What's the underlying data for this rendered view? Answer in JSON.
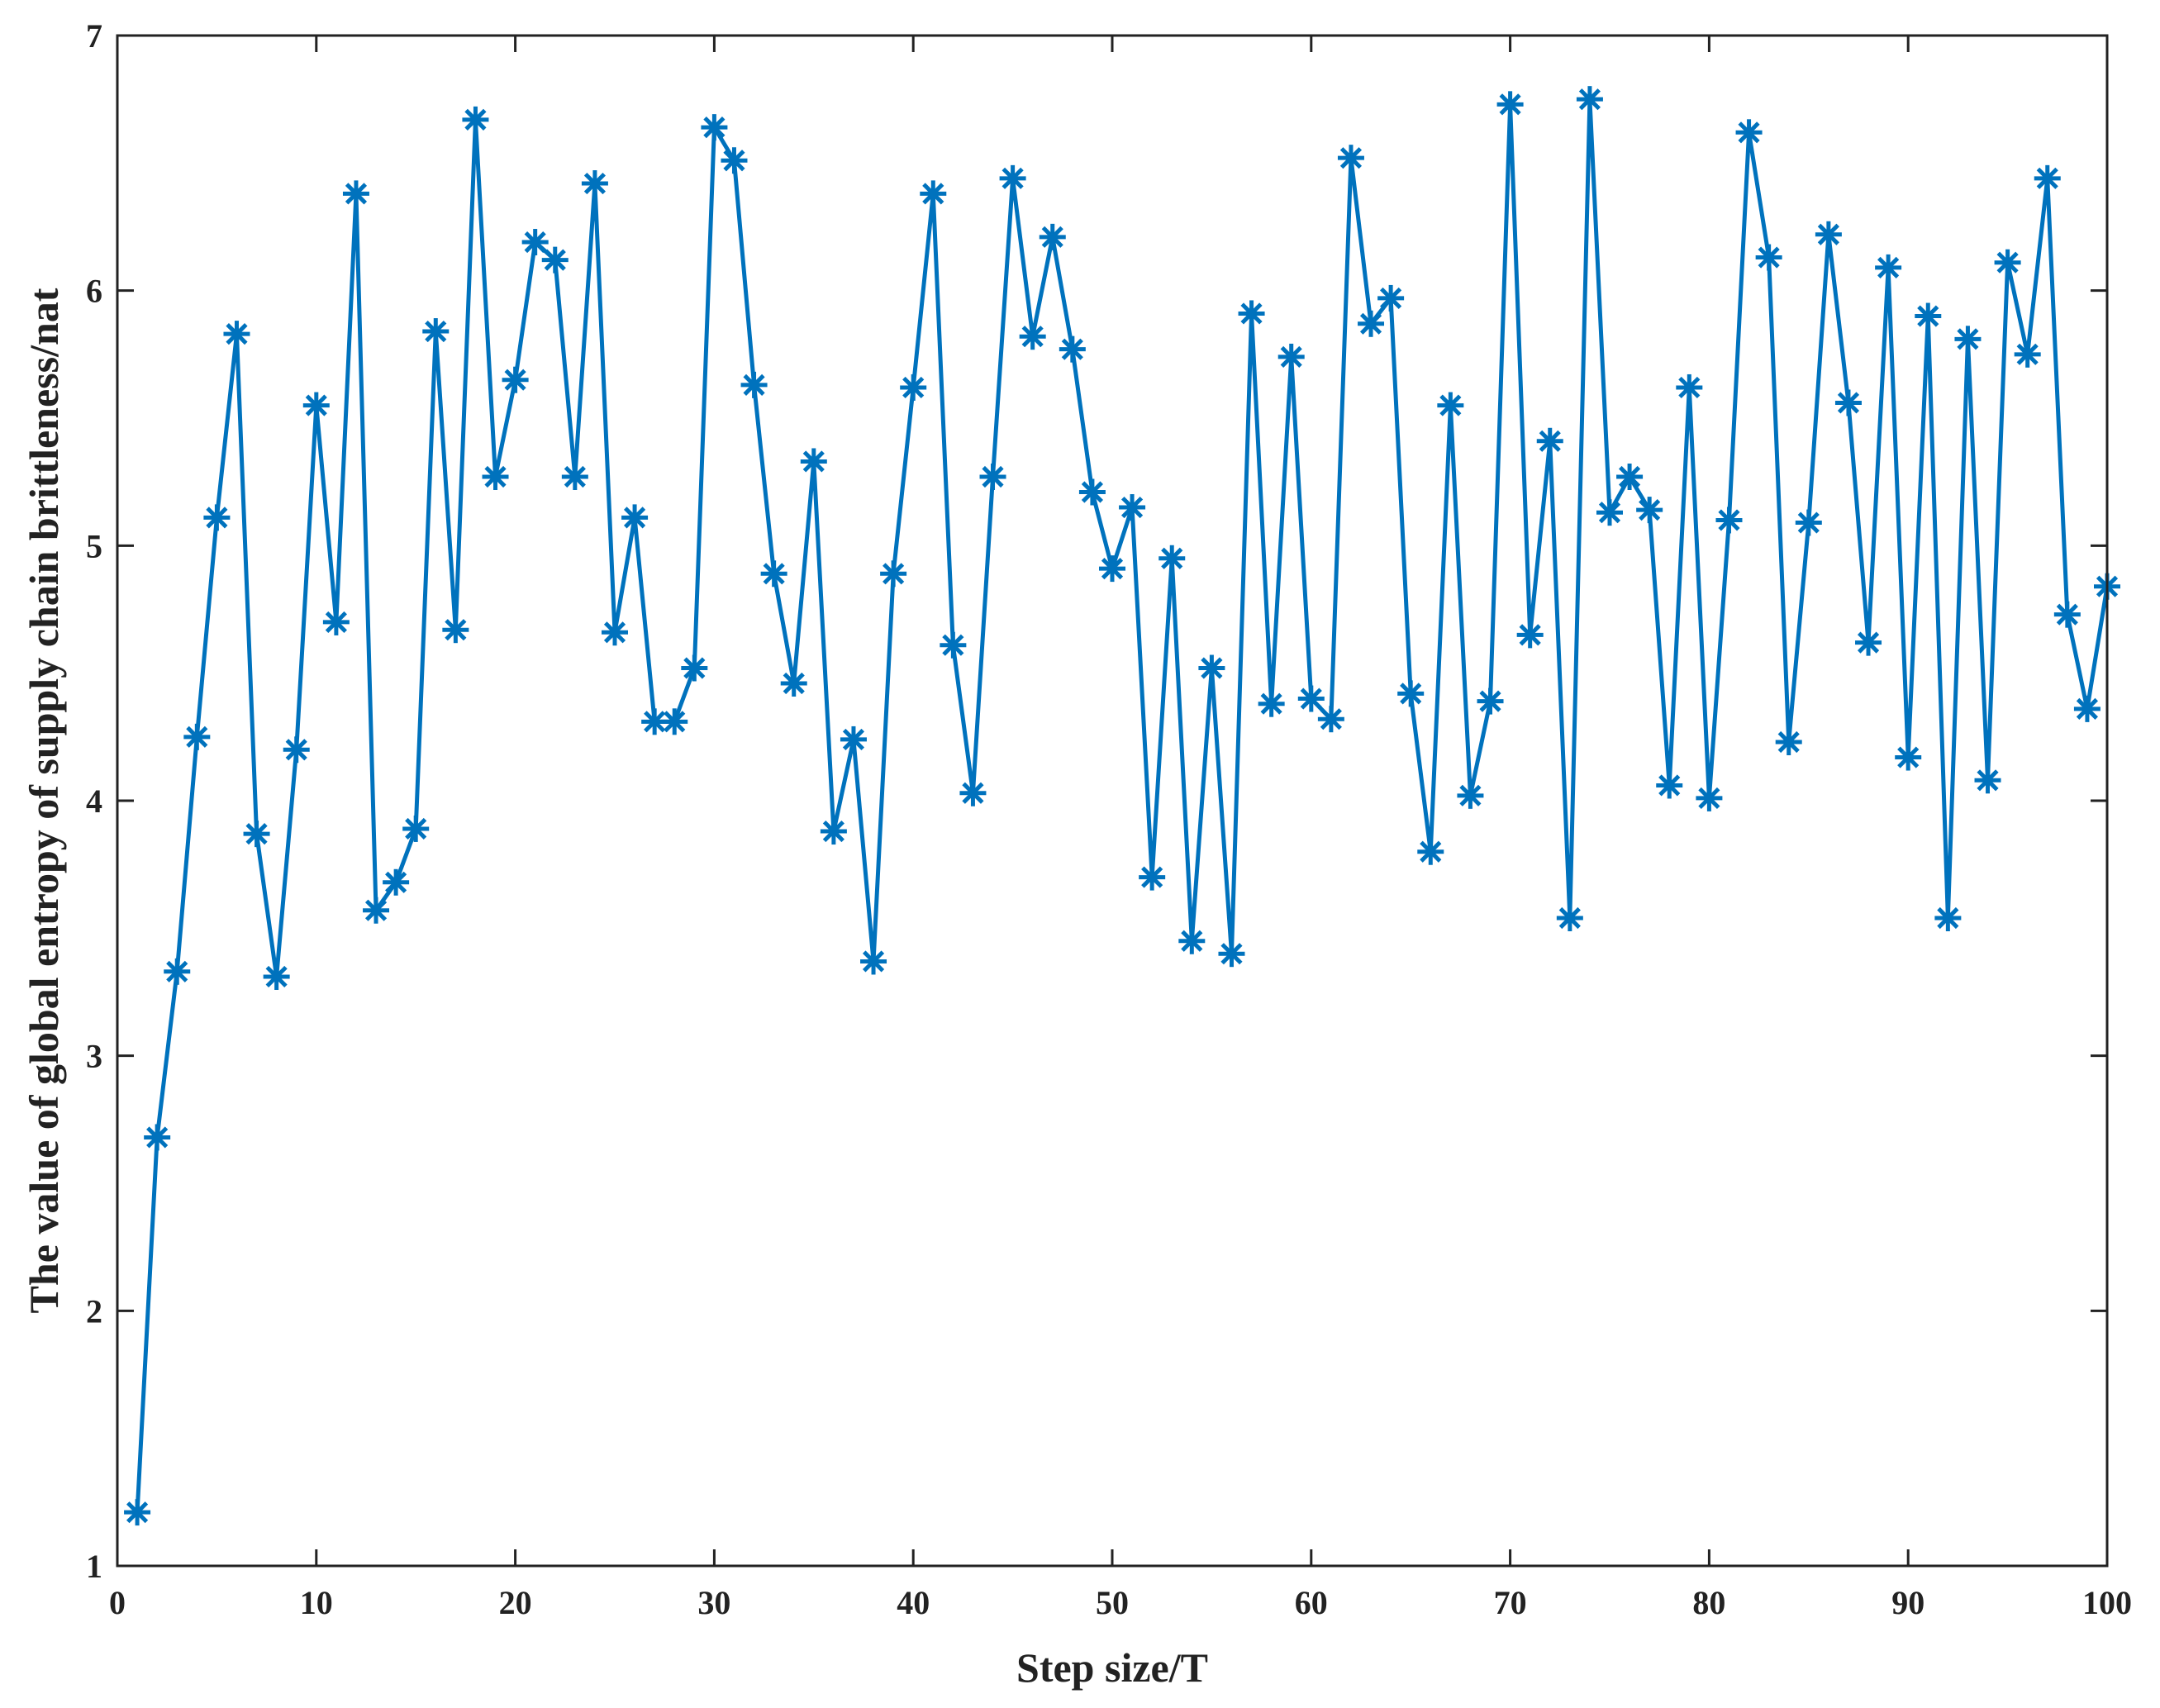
{
  "chart_data": {
    "type": "line",
    "title": "",
    "xlabel": "Step size/T",
    "ylabel": "The value of global entropy of supply chain brittleness/nat",
    "xlim": [
      0,
      100
    ],
    "ylim": [
      1,
      7
    ],
    "xticks": [
      "0",
      "10",
      "20",
      "30",
      "40",
      "50",
      "60",
      "70",
      "80",
      "90",
      "100"
    ],
    "yticks": [
      "1",
      "2",
      "3",
      "4",
      "5",
      "6",
      "7"
    ],
    "grid": false,
    "marker": "asterisk",
    "color": "#0072BD",
    "x": [
      1,
      2,
      3,
      4,
      5,
      6,
      7,
      8,
      9,
      10,
      11,
      12,
      13,
      14,
      15,
      16,
      17,
      18,
      19,
      20,
      21,
      22,
      23,
      24,
      25,
      26,
      27,
      28,
      29,
      30,
      31,
      32,
      33,
      34,
      35,
      36,
      37,
      38,
      39,
      40,
      41,
      42,
      43,
      44,
      45,
      46,
      47,
      48,
      49,
      50,
      51,
      52,
      53,
      54,
      55,
      56,
      57,
      58,
      59,
      60,
      61,
      62,
      63,
      64,
      65,
      66,
      67,
      68,
      69,
      70,
      71,
      72,
      73,
      74,
      75,
      76,
      77,
      78,
      79,
      80,
      81,
      82,
      83,
      84,
      85,
      86,
      87,
      88,
      89,
      90,
      91,
      92,
      93,
      94,
      95,
      96,
      97,
      98,
      99,
      100
    ],
    "y": [
      1.21,
      2.68,
      3.33,
      4.25,
      5.11,
      5.83,
      3.87,
      3.31,
      4.2,
      5.55,
      4.7,
      6.38,
      3.57,
      3.68,
      3.89,
      5.84,
      4.67,
      6.67,
      5.27,
      5.65,
      6.19,
      6.12,
      5.27,
      6.42,
      4.66,
      5.11,
      4.31,
      4.31,
      4.52,
      6.64,
      6.51,
      5.63,
      4.89,
      4.46,
      5.33,
      3.88,
      4.24,
      3.37,
      4.89,
      5.62,
      6.38,
      4.61,
      4.03,
      5.27,
      6.44,
      5.82,
      6.21,
      5.77,
      5.21,
      4.91,
      5.15,
      3.7,
      4.95,
      3.45,
      4.52,
      3.4,
      5.91,
      4.38,
      5.74,
      4.4,
      4.32,
      6.52,
      5.87,
      5.97,
      4.42,
      3.8,
      5.55,
      4.02,
      4.39,
      6.73,
      4.65,
      5.41,
      3.54,
      6.75,
      5.13,
      5.27,
      5.14,
      4.06,
      5.62,
      4.01,
      5.1,
      6.62,
      6.13,
      4.23,
      5.09,
      6.22,
      5.56,
      4.62,
      6.09,
      4.17,
      5.9,
      3.54,
      5.81,
      4.08,
      6.11,
      5.75,
      6.44,
      4.73,
      4.36,
      4.84
    ]
  }
}
